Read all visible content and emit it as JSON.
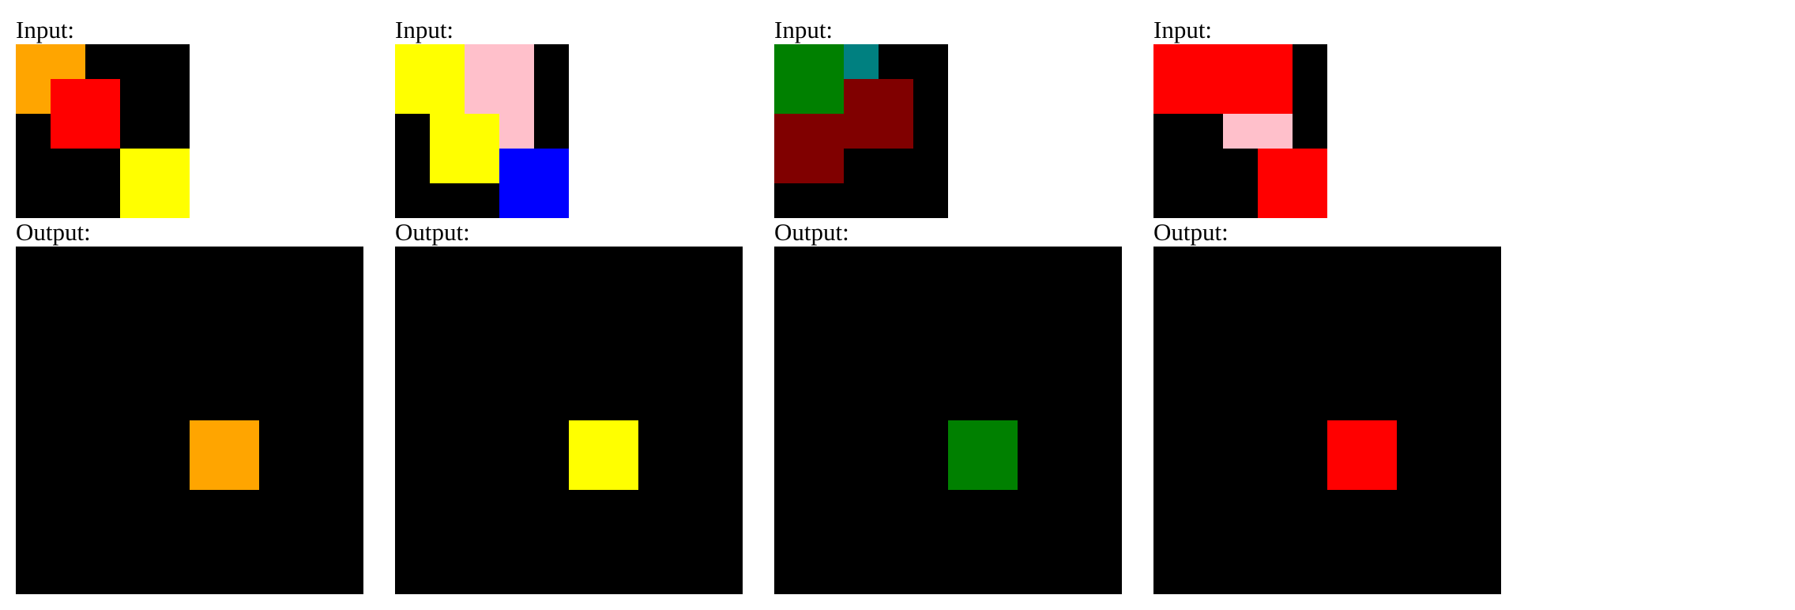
{
  "labels": {
    "input": "Input:",
    "output": "Output:"
  },
  "palette": {
    "0": "#000000",
    "1": "#ffa500",
    "2": "#ff0000",
    "3": "#ffff00",
    "4": "#ffc0cb",
    "5": "#0000ff",
    "6": "#008000",
    "7": "#008080",
    "8": "#800000"
  },
  "examples": [
    {
      "input": [
        [
          1,
          1,
          0,
          0,
          0
        ],
        [
          1,
          2,
          2,
          0,
          0
        ],
        [
          0,
          2,
          2,
          0,
          0
        ],
        [
          0,
          0,
          0,
          3,
          3
        ],
        [
          0,
          0,
          0,
          3,
          3
        ]
      ],
      "output": [
        [
          0,
          0,
          0,
          0,
          0,
          0,
          0,
          0,
          0,
          0
        ],
        [
          0,
          0,
          0,
          0,
          0,
          0,
          0,
          0,
          0,
          0
        ],
        [
          0,
          0,
          0,
          0,
          0,
          0,
          0,
          0,
          0,
          0
        ],
        [
          0,
          0,
          0,
          0,
          0,
          0,
          0,
          0,
          0,
          0
        ],
        [
          0,
          0,
          0,
          0,
          0,
          0,
          0,
          0,
          0,
          0
        ],
        [
          0,
          0,
          0,
          0,
          0,
          1,
          1,
          0,
          0,
          0
        ],
        [
          0,
          0,
          0,
          0,
          0,
          1,
          1,
          0,
          0,
          0
        ],
        [
          0,
          0,
          0,
          0,
          0,
          0,
          0,
          0,
          0,
          0
        ],
        [
          0,
          0,
          0,
          0,
          0,
          0,
          0,
          0,
          0,
          0
        ],
        [
          0,
          0,
          0,
          0,
          0,
          0,
          0,
          0,
          0,
          0
        ]
      ]
    },
    {
      "input": [
        [
          3,
          3,
          4,
          4,
          0
        ],
        [
          3,
          3,
          4,
          4,
          0
        ],
        [
          0,
          3,
          3,
          4,
          0
        ],
        [
          0,
          3,
          3,
          5,
          5
        ],
        [
          0,
          0,
          0,
          5,
          5
        ]
      ],
      "output": [
        [
          0,
          0,
          0,
          0,
          0,
          0,
          0,
          0,
          0,
          0
        ],
        [
          0,
          0,
          0,
          0,
          0,
          0,
          0,
          0,
          0,
          0
        ],
        [
          0,
          0,
          0,
          0,
          0,
          0,
          0,
          0,
          0,
          0
        ],
        [
          0,
          0,
          0,
          0,
          0,
          0,
          0,
          0,
          0,
          0
        ],
        [
          0,
          0,
          0,
          0,
          0,
          0,
          0,
          0,
          0,
          0
        ],
        [
          0,
          0,
          0,
          0,
          0,
          3,
          3,
          0,
          0,
          0
        ],
        [
          0,
          0,
          0,
          0,
          0,
          3,
          3,
          0,
          0,
          0
        ],
        [
          0,
          0,
          0,
          0,
          0,
          0,
          0,
          0,
          0,
          0
        ],
        [
          0,
          0,
          0,
          0,
          0,
          0,
          0,
          0,
          0,
          0
        ],
        [
          0,
          0,
          0,
          0,
          0,
          0,
          0,
          0,
          0,
          0
        ]
      ]
    },
    {
      "input": [
        [
          6,
          6,
          7,
          0,
          0
        ],
        [
          6,
          6,
          8,
          8,
          0
        ],
        [
          8,
          8,
          8,
          8,
          0
        ],
        [
          8,
          8,
          0,
          0,
          0
        ],
        [
          0,
          0,
          0,
          0,
          0
        ]
      ],
      "output": [
        [
          0,
          0,
          0,
          0,
          0,
          0,
          0,
          0,
          0,
          0
        ],
        [
          0,
          0,
          0,
          0,
          0,
          0,
          0,
          0,
          0,
          0
        ],
        [
          0,
          0,
          0,
          0,
          0,
          0,
          0,
          0,
          0,
          0
        ],
        [
          0,
          0,
          0,
          0,
          0,
          0,
          0,
          0,
          0,
          0
        ],
        [
          0,
          0,
          0,
          0,
          0,
          0,
          0,
          0,
          0,
          0
        ],
        [
          0,
          0,
          0,
          0,
          0,
          6,
          6,
          0,
          0,
          0
        ],
        [
          0,
          0,
          0,
          0,
          0,
          6,
          6,
          0,
          0,
          0
        ],
        [
          0,
          0,
          0,
          0,
          0,
          0,
          0,
          0,
          0,
          0
        ],
        [
          0,
          0,
          0,
          0,
          0,
          0,
          0,
          0,
          0,
          0
        ],
        [
          0,
          0,
          0,
          0,
          0,
          0,
          0,
          0,
          0,
          0
        ]
      ]
    },
    {
      "input": [
        [
          2,
          2,
          2,
          2,
          0
        ],
        [
          2,
          2,
          2,
          2,
          0
        ],
        [
          0,
          0,
          4,
          4,
          0
        ],
        [
          0,
          0,
          0,
          2,
          2
        ],
        [
          0,
          0,
          0,
          2,
          2
        ]
      ],
      "output": [
        [
          0,
          0,
          0,
          0,
          0,
          0,
          0,
          0,
          0,
          0
        ],
        [
          0,
          0,
          0,
          0,
          0,
          0,
          0,
          0,
          0,
          0
        ],
        [
          0,
          0,
          0,
          0,
          0,
          0,
          0,
          0,
          0,
          0
        ],
        [
          0,
          0,
          0,
          0,
          0,
          0,
          0,
          0,
          0,
          0
        ],
        [
          0,
          0,
          0,
          0,
          0,
          0,
          0,
          0,
          0,
          0
        ],
        [
          0,
          0,
          0,
          0,
          0,
          2,
          2,
          0,
          0,
          0
        ],
        [
          0,
          0,
          0,
          0,
          0,
          2,
          2,
          0,
          0,
          0
        ],
        [
          0,
          0,
          0,
          0,
          0,
          0,
          0,
          0,
          0,
          0
        ],
        [
          0,
          0,
          0,
          0,
          0,
          0,
          0,
          0,
          0,
          0
        ],
        [
          0,
          0,
          0,
          0,
          0,
          0,
          0,
          0,
          0,
          0
        ]
      ]
    }
  ]
}
